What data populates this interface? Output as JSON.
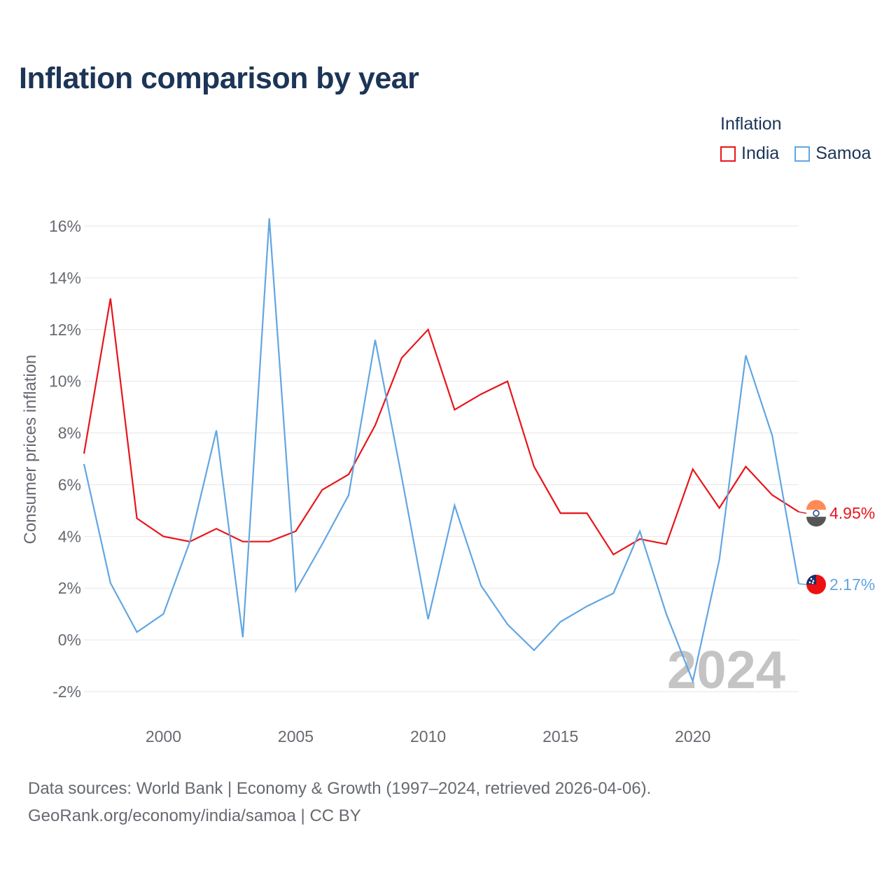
{
  "title": "Inflation comparison by year",
  "legend": {
    "title": "Inflation",
    "items": [
      {
        "label": "India",
        "color": "#e8151b"
      },
      {
        "label": "Samoa",
        "color": "#62a6e2"
      }
    ]
  },
  "footer": {
    "line1": "Data sources: World Bank | Economy & Growth (1997–2024, retrieved 2026-04-06).",
    "line2": "GeoRank.org/economy/india/samoa | CC BY"
  },
  "chart_data": {
    "type": "line",
    "title": "Inflation comparison by year",
    "xlabel": "",
    "ylabel": "Consumer prices inflation",
    "xlim": [
      1997,
      2024
    ],
    "ylim": [
      -2,
      16
    ],
    "y_ticks": [
      -2,
      0,
      2,
      4,
      6,
      8,
      10,
      12,
      14,
      16
    ],
    "y_tick_labels": [
      "-2%",
      "0%",
      "2%",
      "4%",
      "6%",
      "8%",
      "10%",
      "12%",
      "14%",
      "16%"
    ],
    "x_ticks": [
      2000,
      2005,
      2010,
      2015,
      2020
    ],
    "x_tick_labels": [
      "2000",
      "2005",
      "2010",
      "2015",
      "2020"
    ],
    "grid": true,
    "watermark_year": "2024",
    "x": [
      1997,
      1998,
      1999,
      2000,
      2001,
      2002,
      2003,
      2004,
      2005,
      2006,
      2007,
      2008,
      2009,
      2010,
      2011,
      2012,
      2013,
      2014,
      2015,
      2016,
      2017,
      2018,
      2019,
      2020,
      2021,
      2022,
      2023,
      2024
    ],
    "series": [
      {
        "name": "India",
        "color": "#e8151b",
        "end_label": "4.95%",
        "values": [
          7.2,
          13.2,
          4.7,
          4.0,
          3.8,
          4.3,
          3.8,
          3.8,
          4.2,
          5.8,
          6.4,
          8.3,
          10.9,
          12.0,
          8.9,
          9.5,
          10.0,
          6.7,
          4.9,
          4.9,
          3.3,
          3.9,
          3.7,
          6.6,
          5.1,
          6.7,
          5.6,
          4.95
        ]
      },
      {
        "name": "Samoa",
        "color": "#62a6e2",
        "end_label": "2.17%",
        "values": [
          6.8,
          2.2,
          0.3,
          1.0,
          3.8,
          8.1,
          0.1,
          16.3,
          1.9,
          3.7,
          5.6,
          11.6,
          6.3,
          0.8,
          5.2,
          2.1,
          0.6,
          -0.4,
          0.7,
          1.3,
          1.8,
          4.2,
          1.0,
          -1.6,
          3.1,
          11.0,
          7.9,
          2.17
        ]
      }
    ]
  }
}
